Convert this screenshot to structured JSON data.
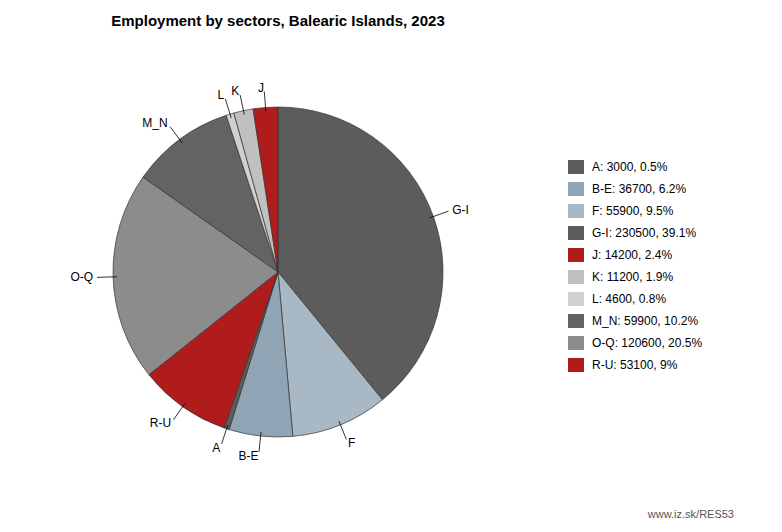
{
  "chart_data": {
    "type": "pie",
    "title": "Employment by sectors, Balearic Islands, 2023",
    "categories": [
      "G-I",
      "F",
      "B-E",
      "A",
      "R-U",
      "O-Q",
      "M_N",
      "L",
      "K",
      "J"
    ],
    "values": [
      230500,
      55900,
      36700,
      3000,
      53100,
      120600,
      59900,
      4600,
      11200,
      14200
    ],
    "colors": [
      "#5c5c5c",
      "#a8b8c4",
      "#8fa4b4",
      "#5c5c5c",
      "#b01c1c",
      "#8c8c8c",
      "#636363",
      "#d0d0d0",
      "#c0c0c0",
      "#b01c1c"
    ],
    "legend": "right",
    "legend_labels": [
      "A: 3000, 0.5%",
      "B-E: 36700, 6.2%",
      "F: 55900, 9.5%",
      "G-I: 230500, 39.1%",
      "J: 14200, 2.4%",
      "K: 11200, 1.9%",
      "L: 4600, 0.8%",
      "M_N: 59900, 10.2%",
      "O-Q: 120600, 20.5%",
      "R-U: 53100, 9%"
    ],
    "legend_colors": [
      "#5c5c5c",
      "#8fa4b4",
      "#a8b8c4",
      "#5c5c5c",
      "#b01c1c",
      "#c0c0c0",
      "#d0d0d0",
      "#636363",
      "#8c8c8c",
      "#b01c1c"
    ],
    "annotations": [
      "www.iz.sk/RES53"
    ]
  }
}
